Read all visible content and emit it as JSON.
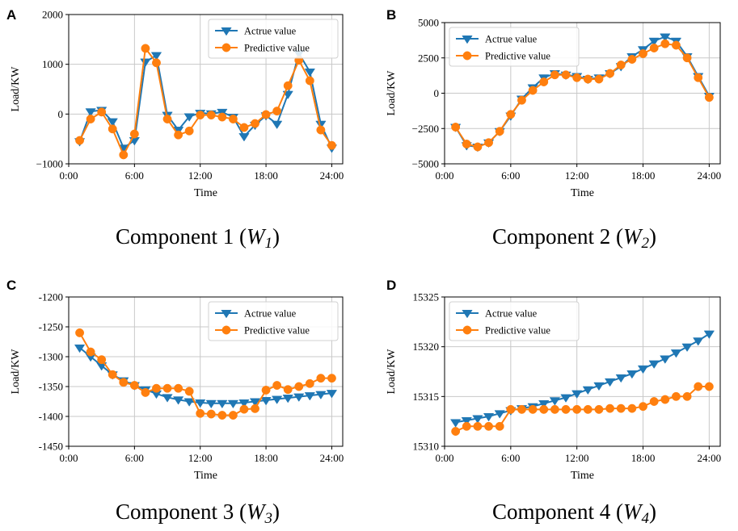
{
  "colors": {
    "actual": "#1f77b4",
    "predictive": "#ff7f0e",
    "grid": "#c8c8c8",
    "axis": "#000000"
  },
  "chart_data": [
    {
      "panel_letter": "A",
      "type": "line",
      "caption": {
        "prefix": "Component 1 (",
        "var": "W",
        "sub": "1",
        "suffix": ")"
      },
      "xlabel": "Time",
      "ylabel": "Load/KW",
      "xlim": [
        0,
        25
      ],
      "ylim": [
        -1000,
        2000
      ],
      "xticks": [
        0,
        6,
        12,
        18,
        24
      ],
      "xtick_labels": [
        "0:00",
        "6:00",
        "12:00",
        "18:00",
        "24:00"
      ],
      "yticks": [
        -1000,
        0,
        1000,
        2000
      ],
      "ytick_labels": [
        "−1000",
        "0",
        "1000",
        "2000"
      ],
      "grid": true,
      "legend": "top-right",
      "x": [
        1,
        2,
        3,
        4,
        5,
        6,
        7,
        8,
        9,
        10,
        11,
        12,
        13,
        14,
        15,
        16,
        17,
        18,
        19,
        20,
        21,
        22,
        23,
        24
      ],
      "series": [
        {
          "name": "Actrue value",
          "marker": "triangle-down",
          "values": [
            -550,
            50,
            80,
            -150,
            -680,
            -530,
            1050,
            1180,
            -20,
            -320,
            -50,
            20,
            10,
            40,
            -60,
            -450,
            -220,
            -30,
            -200,
            400,
            1220,
            850,
            -200,
            -680
          ]
        },
        {
          "name": "Predictive value",
          "marker": "circle",
          "values": [
            -530,
            -100,
            40,
            -300,
            -820,
            -400,
            1320,
            1030,
            -100,
            -420,
            -340,
            -20,
            -20,
            -60,
            -100,
            -270,
            -190,
            -10,
            60,
            570,
            1080,
            670,
            -320,
            -630
          ]
        }
      ]
    },
    {
      "panel_letter": "B",
      "type": "line",
      "caption": {
        "prefix": "Component 2 (",
        "var": "W",
        "sub": "2",
        "suffix": ")"
      },
      "xlabel": "Time",
      "ylabel": "Load/KW",
      "xlim": [
        0,
        25
      ],
      "ylim": [
        -5000,
        5000
      ],
      "xticks": [
        0,
        6,
        12,
        18,
        24
      ],
      "xtick_labels": [
        "0:00",
        "6:00",
        "12:00",
        "18:00",
        "24:00"
      ],
      "yticks": [
        -5000,
        -2500,
        0,
        2500,
        5000
      ],
      "ytick_labels": [
        "−5000",
        "−2500",
        "0",
        "2500",
        "5000"
      ],
      "grid": true,
      "legend": "top-left",
      "x": [
        1,
        2,
        3,
        4,
        5,
        6,
        7,
        8,
        9,
        10,
        11,
        12,
        13,
        14,
        15,
        16,
        17,
        18,
        19,
        20,
        21,
        22,
        23,
        24
      ],
      "series": [
        {
          "name": "Actrue value",
          "marker": "triangle-down",
          "values": [
            -2400,
            -3700,
            -3800,
            -3500,
            -2700,
            -1600,
            -400,
            400,
            1100,
            1400,
            1300,
            1200,
            1000,
            1100,
            1400,
            1900,
            2600,
            3100,
            3700,
            4000,
            3700,
            2600,
            1200,
            -200
          ]
        },
        {
          "name": "Predictive value",
          "marker": "circle",
          "values": [
            -2400,
            -3600,
            -3800,
            -3500,
            -2700,
            -1500,
            -500,
            200,
            800,
            1300,
            1300,
            1100,
            1000,
            1000,
            1400,
            2000,
            2400,
            2800,
            3200,
            3500,
            3400,
            2500,
            1100,
            -300
          ]
        }
      ]
    },
    {
      "panel_letter": "C",
      "type": "line",
      "caption": {
        "prefix": "Component 3 (",
        "var": "W",
        "sub": "3",
        "suffix": ")"
      },
      "xlabel": "Time",
      "ylabel": "Load/KW",
      "xlim": [
        0,
        25
      ],
      "ylim": [
        -1450,
        -1200
      ],
      "xticks": [
        0,
        6,
        12,
        18,
        24
      ],
      "xtick_labels": [
        "0:00",
        "6:00",
        "12:00",
        "18:00",
        "24:00"
      ],
      "yticks": [
        -1450,
        -1400,
        -1350,
        -1300,
        -1250,
        -1200
      ],
      "ytick_labels": [
        "-1450",
        "-1400",
        "-1350",
        "-1300",
        "-1250",
        "-1200"
      ],
      "grid": true,
      "legend": "top-right",
      "x": [
        1,
        2,
        3,
        4,
        5,
        6,
        7,
        8,
        9,
        10,
        11,
        12,
        13,
        14,
        15,
        16,
        17,
        18,
        19,
        20,
        21,
        22,
        23,
        24
      ],
      "series": [
        {
          "name": "Actrue value",
          "marker": "triangle-down",
          "values": [
            -1285,
            -1300,
            -1315,
            -1330,
            -1340,
            -1348,
            -1355,
            -1362,
            -1368,
            -1372,
            -1375,
            -1377,
            -1378,
            -1378,
            -1378,
            -1377,
            -1375,
            -1373,
            -1371,
            -1369,
            -1367,
            -1365,
            -1363,
            -1361
          ]
        },
        {
          "name": "Predictive value",
          "marker": "circle",
          "values": [
            -1260,
            -1292,
            -1305,
            -1330,
            -1343,
            -1348,
            -1360,
            -1353,
            -1353,
            -1353,
            -1358,
            -1395,
            -1396,
            -1398,
            -1398,
            -1388,
            -1387,
            -1356,
            -1348,
            -1355,
            -1350,
            -1345,
            -1336,
            -1336
          ]
        }
      ]
    },
    {
      "panel_letter": "D",
      "type": "line",
      "caption": {
        "prefix": "Component 4 (",
        "var": "W",
        "sub": "4",
        "suffix": ")"
      },
      "xlabel": "Time",
      "ylabel": "Load/KW",
      "xlim": [
        0,
        25
      ],
      "ylim": [
        15310,
        15325
      ],
      "xticks": [
        0,
        6,
        12,
        18,
        24
      ],
      "xtick_labels": [
        "0:00",
        "6:00",
        "12:00",
        "18:00",
        "24:00"
      ],
      "yticks": [
        15310,
        15315,
        15320,
        15325
      ],
      "ytick_labels": [
        "15310",
        "15315",
        "15320",
        "15325"
      ],
      "grid": true,
      "legend": "top-left",
      "x": [
        1,
        2,
        3,
        4,
        5,
        6,
        7,
        8,
        9,
        10,
        11,
        12,
        13,
        14,
        15,
        16,
        17,
        18,
        19,
        20,
        21,
        22,
        23,
        24
      ],
      "series": [
        {
          "name": "Actrue value",
          "marker": "triangle-down",
          "values": [
            15312.4,
            15312.6,
            15312.8,
            15313.0,
            15313.3,
            15313.6,
            15313.8,
            15314.0,
            15314.3,
            15314.6,
            15314.9,
            15315.3,
            15315.7,
            15316.1,
            15316.5,
            15316.9,
            15317.3,
            15317.8,
            15318.3,
            15318.8,
            15319.4,
            15320.0,
            15320.6,
            15321.3
          ]
        },
        {
          "name": "Predictive value",
          "marker": "circle",
          "values": [
            15311.5,
            15312.0,
            15312.0,
            15312.0,
            15312.0,
            15313.7,
            15313.7,
            15313.7,
            15313.7,
            15313.7,
            15313.7,
            15313.7,
            15313.7,
            15313.7,
            15313.8,
            15313.8,
            15313.8,
            15314.0,
            15314.5,
            15314.7,
            15315.0,
            15315.0,
            15316.0,
            15316.0
          ]
        }
      ]
    }
  ]
}
